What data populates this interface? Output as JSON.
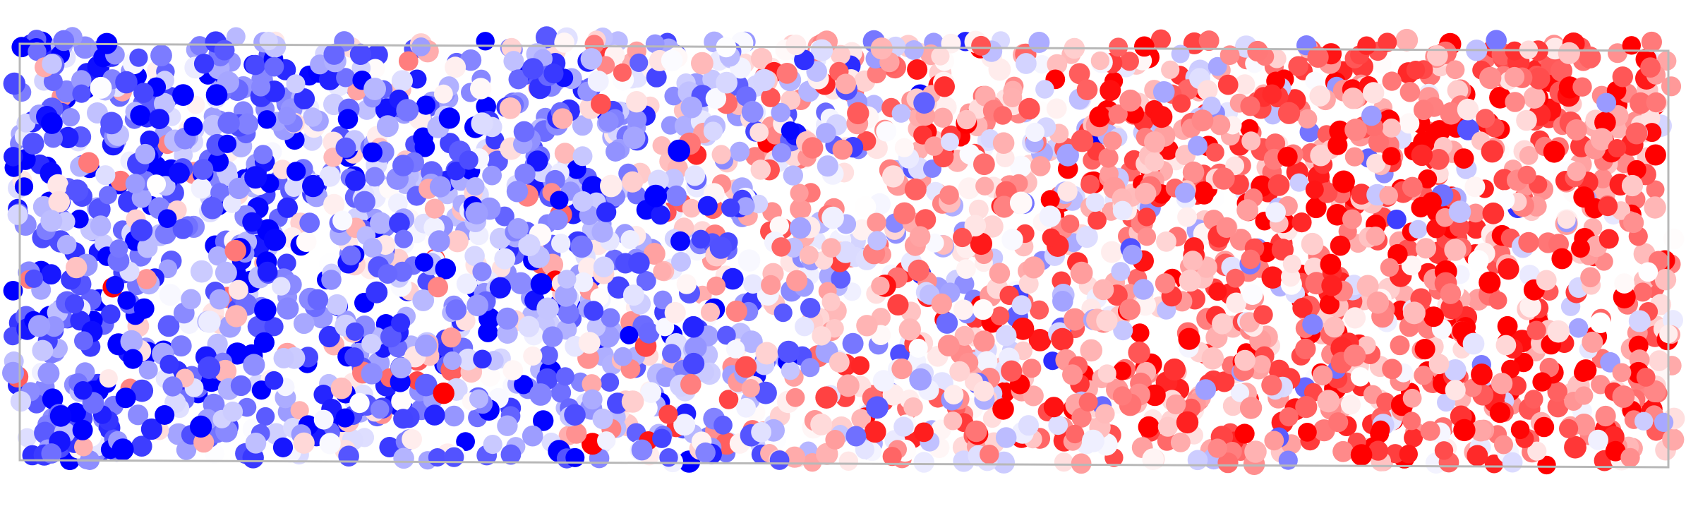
{
  "scene": {
    "subject": "packed-disc-particle-simulation",
    "colormap": {
      "low": "#0000ff",
      "mid": "#ffffff",
      "high": "#ff0000"
    },
    "particle_count": 3200,
    "box_outline_color": "#b8b8b8",
    "dominant_low_region": "left",
    "dominant_high_region": "right"
  }
}
